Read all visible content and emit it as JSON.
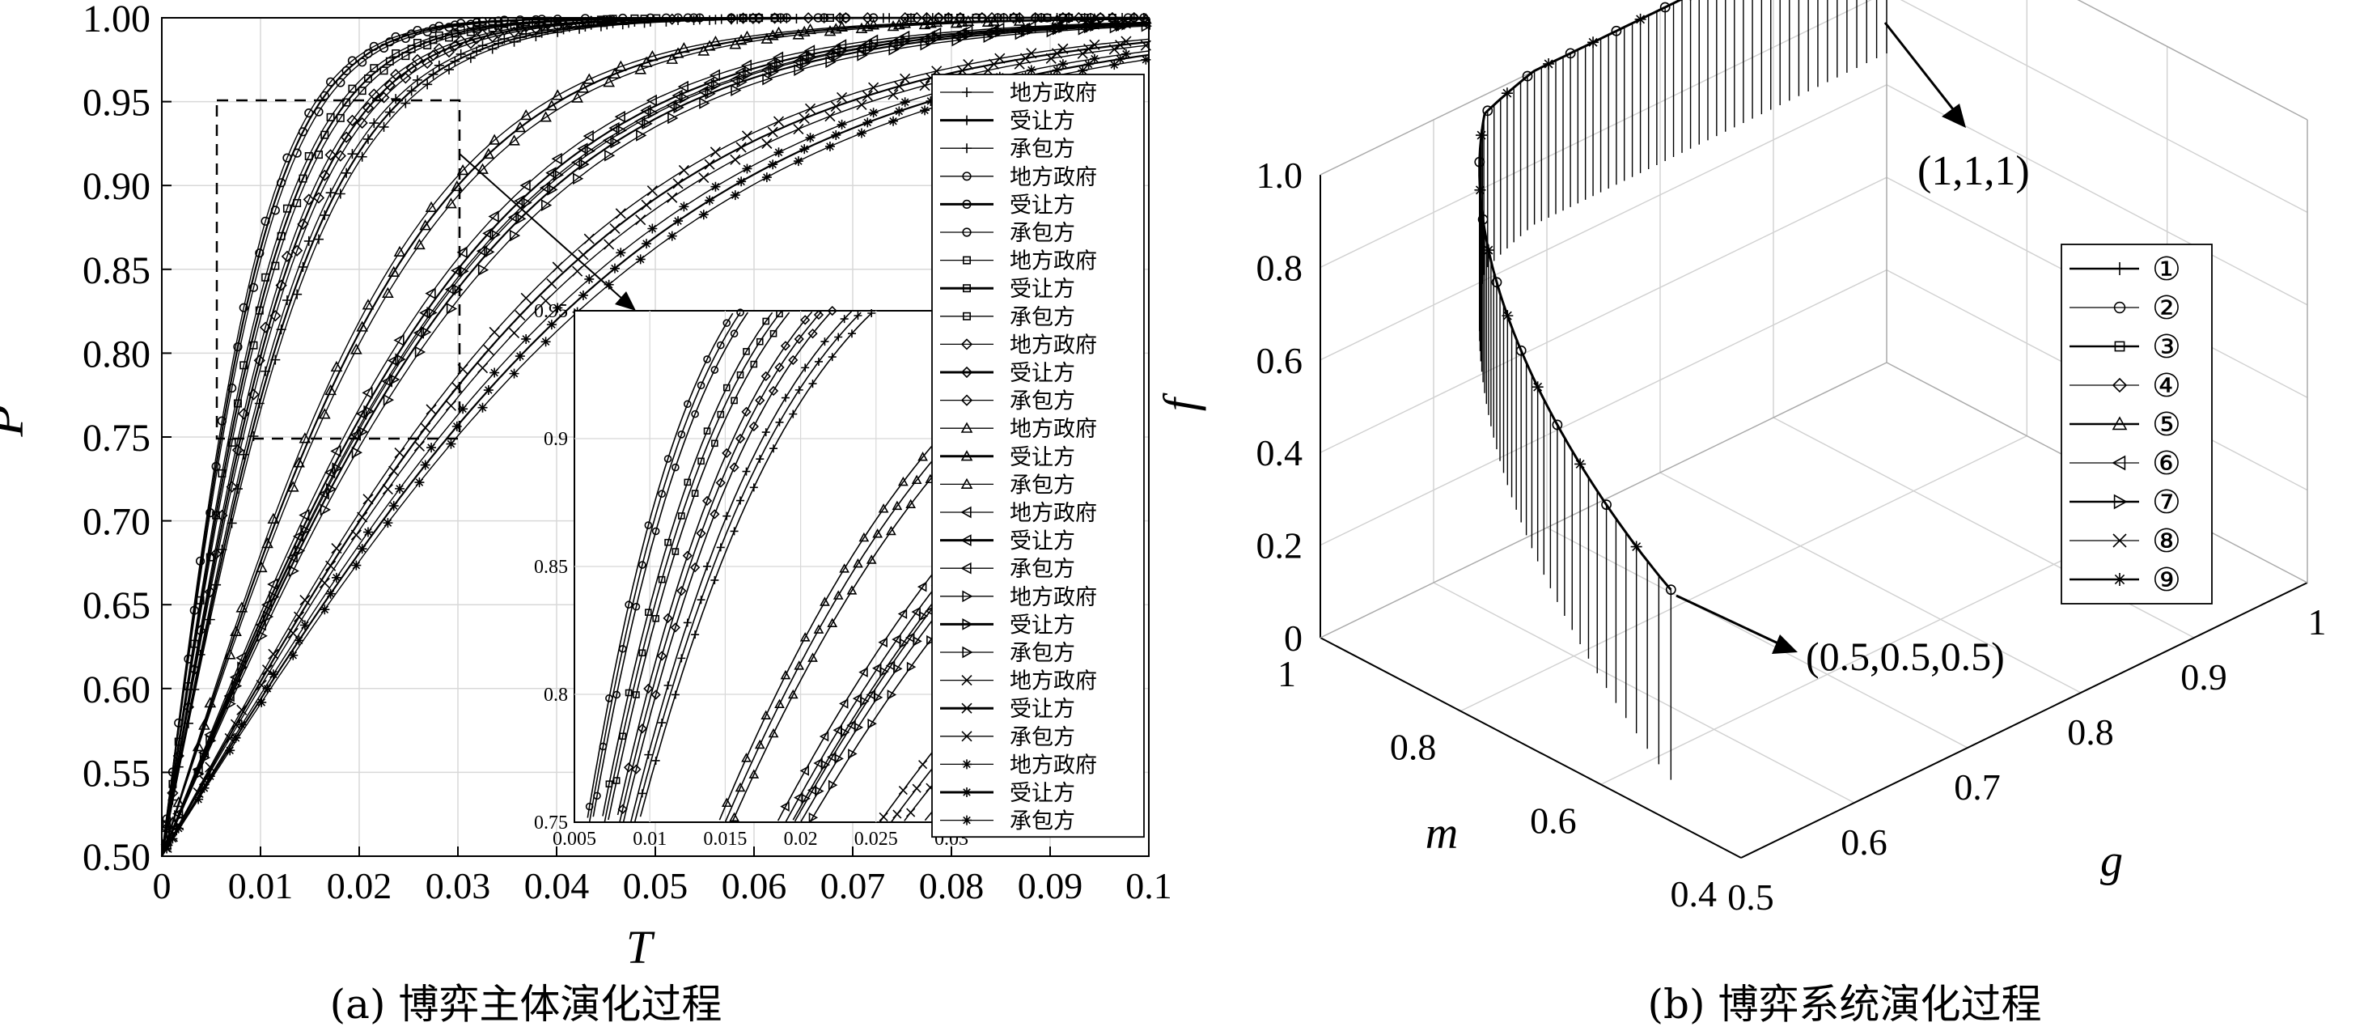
{
  "panel_a": {
    "caption": "(a) 博弈主体演化过程",
    "ylabel": "P",
    "xlabel": "T",
    "xticks": [
      "0",
      "0.01",
      "0.02",
      "0.03",
      "0.04",
      "0.05",
      "0.06",
      "0.07",
      "0.08",
      "0.09",
      "0.1"
    ],
    "yticks": [
      "0.50",
      "0.55",
      "0.60",
      "0.65",
      "0.70",
      "0.75",
      "0.80",
      "0.85",
      "0.90",
      "0.95",
      "1.00"
    ],
    "legend": [
      "地方政府",
      "受让方",
      "承包方",
      "地方政府",
      "受让方",
      "承包方",
      "地方政府",
      "受让方",
      "承包方",
      "地方政府",
      "受让方",
      "承包方",
      "地方政府",
      "受让方",
      "承包方",
      "地方政府",
      "受让方",
      "承包方",
      "地方政府",
      "受让方",
      "承包方",
      "地方政府",
      "受让方",
      "承包方",
      "地方政府",
      "受让方",
      "承包方"
    ],
    "inset": {
      "xticks": [
        "0.005",
        "0.01",
        "0.015",
        "0.02",
        "0.025",
        "0.03"
      ],
      "yticks": [
        "0.75",
        "0.8",
        "0.85",
        "0.9",
        "0.95"
      ]
    }
  },
  "panel_b": {
    "caption": "(b) 博弈系统演化过程",
    "zlabel": "f",
    "xlabel": "m",
    "ylabel": "g",
    "zticks": [
      "0",
      "0.2",
      "0.4",
      "0.6",
      "0.8",
      "1.0"
    ],
    "mticks": [
      "1",
      "0.8",
      "0.6",
      "0.4"
    ],
    "gticks": [
      "0.5",
      "0.6",
      "0.7",
      "0.8",
      "0.9",
      "1"
    ],
    "legend": [
      "①",
      "②",
      "③",
      "④",
      "⑤",
      "⑥",
      "⑦",
      "⑧",
      "⑨"
    ],
    "annotation_top": "(1,1,1)",
    "annotation_bottom": "(0.5,0.5,0.5)"
  },
  "chart_data": [
    {
      "type": "line",
      "panel": "a",
      "xlabel": "T",
      "ylabel": "P",
      "xlim": [
        0,
        0.1
      ],
      "ylim": [
        0.5,
        1.0
      ],
      "grid": true,
      "legend_position": "right",
      "series_groups": [
        {
          "markers": "plus",
          "t90": 0.018
        },
        {
          "markers": "circle",
          "t90": 0.012
        },
        {
          "markers": "square",
          "t90": 0.014
        },
        {
          "markers": "diamond",
          "t90": 0.016
        },
        {
          "markers": "triangle-up",
          "t90": 0.03
        },
        {
          "markers": "triangle-left",
          "t90": 0.038
        },
        {
          "markers": "triangle-right",
          "t90": 0.04
        },
        {
          "markers": "x",
          "t90": 0.052
        },
        {
          "markers": "asterisk",
          "t90": 0.058
        }
      ]
    },
    {
      "type": "line",
      "panel": "b",
      "xlabel": "m",
      "ylabel": "g",
      "zlabel": "f",
      "xlim": [
        0.4,
        1
      ],
      "ylim": [
        0.5,
        1
      ],
      "zlim": [
        0,
        1
      ],
      "start_point": [
        0.5,
        0.5,
        0.5
      ],
      "end_point": [
        1,
        1,
        1
      ],
      "grid": true,
      "legend_position": "right"
    }
  ]
}
